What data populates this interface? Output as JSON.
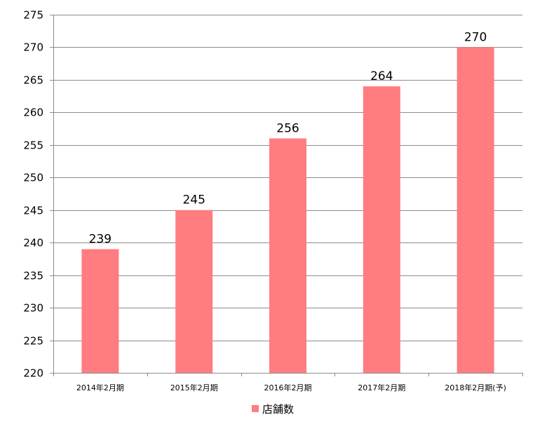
{
  "chart_data": {
    "type": "bar",
    "categories": [
      "2014年2月期",
      "2015年2月期",
      "2016年2月期",
      "2017年2月期",
      "2018年2月期(予)"
    ],
    "series": [
      {
        "name": "店舗数",
        "values": [
          239,
          245,
          256,
          264,
          270
        ],
        "color": "#ff7c80"
      }
    ],
    "data_labels": [
      "239",
      "245",
      "256",
      "264",
      "270"
    ],
    "ylim": [
      220,
      275
    ],
    "ystep": 5,
    "grid": true,
    "legend": "bottom",
    "title": "",
    "xlabel": "",
    "ylabel": ""
  }
}
